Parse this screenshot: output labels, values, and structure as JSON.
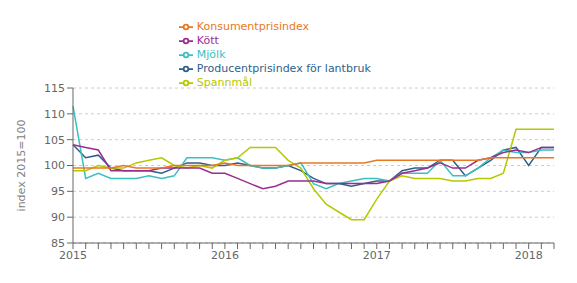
{
  "chart_data": {
    "type": "line",
    "title": "",
    "y_label": "index 2015=100",
    "categories": [
      "2015",
      null,
      null,
      null,
      null,
      null,
      null,
      null,
      null,
      null,
      null,
      null,
      "2016",
      null,
      null,
      null,
      null,
      null,
      null,
      null,
      null,
      null,
      null,
      null,
      "2017",
      null,
      null,
      null,
      null,
      null,
      null,
      null,
      null,
      null,
      null,
      null,
      "2018",
      null,
      null
    ],
    "series": [
      {
        "name": "Producentprisindex för lantbruk",
        "color": "#2e5f8a",
        "values": [
          104.0,
          101.5,
          102.0,
          99.5,
          99.0,
          99.0,
          99.0,
          98.5,
          99.5,
          100.5,
          100.5,
          100.0,
          100.0,
          100.5,
          100.0,
          99.5,
          99.5,
          100.0,
          99.0,
          97.5,
          96.5,
          96.5,
          96.0,
          96.5,
          97.0,
          97.0,
          99.0,
          99.5,
          99.5,
          101.0,
          101.0,
          98.0,
          99.5,
          101.0,
          103.0,
          103.5,
          100.0,
          103.5,
          103.5
        ]
      },
      {
        "name": "Mjölk",
        "color": "#3cbfbf",
        "values": [
          111.5,
          97.5,
          98.5,
          97.5,
          97.5,
          97.5,
          98.0,
          97.5,
          98.0,
          101.5,
          101.5,
          101.5,
          101.0,
          101.5,
          100.0,
          99.5,
          99.5,
          100.0,
          100.5,
          96.5,
          95.5,
          96.5,
          97.0,
          97.5,
          97.5,
          97.0,
          98.5,
          98.5,
          98.5,
          101.0,
          98.0,
          98.0,
          99.5,
          101.5,
          103.0,
          102.5,
          102.5,
          103.0,
          103.0
        ]
      },
      {
        "name": "Spannmål",
        "color": "#b5c800",
        "values": [
          99.0,
          99.0,
          100.0,
          99.5,
          99.5,
          100.5,
          101.0,
          101.5,
          100.0,
          99.5,
          100.0,
          99.5,
          101.0,
          101.5,
          103.5,
          103.5,
          103.5,
          101.0,
          99.5,
          95.5,
          92.5,
          91.0,
          89.5,
          89.5,
          93.5,
          97.0,
          98.0,
          97.5,
          97.5,
          97.5,
          97.0,
          97.0,
          97.5,
          97.5,
          98.5,
          107.0,
          107.0,
          107.0,
          107.0
        ]
      },
      {
        "name": "Kött",
        "color": "#9b2d8e",
        "values": [
          104.0,
          103.5,
          103.0,
          99.0,
          99.0,
          99.0,
          99.0,
          99.5,
          99.5,
          99.5,
          99.5,
          98.5,
          98.5,
          97.5,
          96.5,
          95.5,
          96.0,
          97.0,
          97.0,
          97.0,
          96.5,
          96.5,
          96.5,
          96.5,
          96.5,
          97.0,
          98.5,
          99.0,
          99.5,
          100.5,
          99.5,
          99.5,
          101.0,
          101.5,
          102.5,
          103.0,
          102.5,
          103.5,
          103.5
        ]
      },
      {
        "name": "Konsumentprisindex",
        "color": "#e87820",
        "values": [
          99.5,
          99.5,
          99.5,
          99.5,
          100.0,
          99.5,
          99.5,
          99.5,
          100.0,
          100.0,
          100.0,
          100.0,
          100.5,
          100.0,
          100.0,
          100.0,
          100.0,
          100.0,
          100.5,
          100.5,
          100.5,
          100.5,
          100.5,
          100.5,
          101.0,
          101.0,
          101.0,
          101.0,
          101.0,
          101.0,
          101.0,
          101.0,
          101.0,
          101.5,
          101.5,
          101.5,
          101.5,
          101.5,
          101.5
        ]
      }
    ],
    "ylim": [
      85,
      115
    ],
    "yticks": [
      85,
      90,
      95,
      100,
      105,
      110,
      115
    ],
    "grid": true,
    "legend": "upper left"
  }
}
